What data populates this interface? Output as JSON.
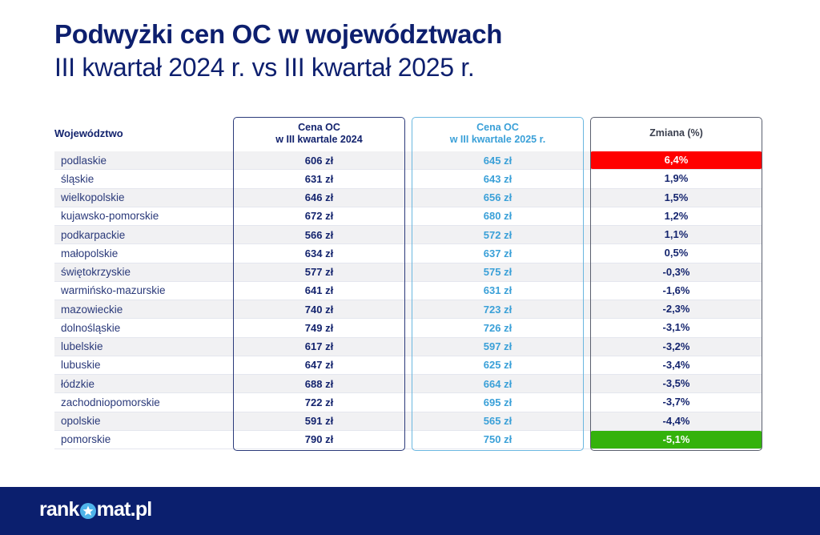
{
  "header": {
    "title": "Podwyżki cen OC w województwach",
    "subtitle": "III kwartał 2024 r. vs III kwartał 2025 r."
  },
  "table": {
    "columns": {
      "region": "Województwo",
      "price_2024_line1": "Cena OC",
      "price_2024_line2": "w III kwartale 2024",
      "price_2025_line1": "Cena OC",
      "price_2025_line2": "w III kwartale 2025 r.",
      "change": "Zmiana (%)"
    },
    "rows": [
      {
        "region": "podlaskie",
        "price_2024": "606 zł",
        "price_2025": "645 zł",
        "change": "6,4%",
        "highlight": "red"
      },
      {
        "region": "śląskie",
        "price_2024": "631 zł",
        "price_2025": "643 zł",
        "change": "1,9%"
      },
      {
        "region": "wielkopolskie",
        "price_2024": "646 zł",
        "price_2025": "656 zł",
        "change": "1,5%"
      },
      {
        "region": "kujawsko-pomorskie",
        "price_2024": "672 zł",
        "price_2025": "680 zł",
        "change": "1,2%"
      },
      {
        "region": "podkarpackie",
        "price_2024": "566 zł",
        "price_2025": "572 zł",
        "change": "1,1%"
      },
      {
        "region": "małopolskie",
        "price_2024": "634 zł",
        "price_2025": "637 zł",
        "change": "0,5%"
      },
      {
        "region": "świętokrzyskie",
        "price_2024": "577 zł",
        "price_2025": "575 zł",
        "change": "-0,3%"
      },
      {
        "region": "warmińsko-mazurskie",
        "price_2024": "641 zł",
        "price_2025": "631 zł",
        "change": "-1,6%"
      },
      {
        "region": "mazowieckie",
        "price_2024": "740 zł",
        "price_2025": "723 zł",
        "change": "-2,3%"
      },
      {
        "region": "dolnośląskie",
        "price_2024": "749 zł",
        "price_2025": "726 zł",
        "change": "-3,1%"
      },
      {
        "region": "lubelskie",
        "price_2024": "617 zł",
        "price_2025": "597 zł",
        "change": "-3,2%"
      },
      {
        "region": "lubuskie",
        "price_2024": "647 zł",
        "price_2025": "625 zł",
        "change": "-3,4%"
      },
      {
        "region": "łódzkie",
        "price_2024": "688 zł",
        "price_2025": "664 zł",
        "change": "-3,5%"
      },
      {
        "region": "zachodniopomorskie",
        "price_2024": "722 zł",
        "price_2025": "695 zł",
        "change": "-3,7%"
      },
      {
        "region": "opolskie",
        "price_2024": "591 zł",
        "price_2025": "565 zł",
        "change": "-4,4%"
      },
      {
        "region": "pomorskie",
        "price_2024": "790 zł",
        "price_2025": "750 zł",
        "change": "-5,1%",
        "highlight": "green"
      }
    ]
  },
  "colors": {
    "title": "#0d1f6e",
    "price_2025": "#3aa0d8",
    "highlight_red": "#ff0000",
    "highlight_green": "#34b20c",
    "footer_bg": "#0b1f6e"
  },
  "footer": {
    "logo_left": "rank",
    "logo_icon": "star-circle-icon",
    "logo_right": "mat.pl"
  }
}
